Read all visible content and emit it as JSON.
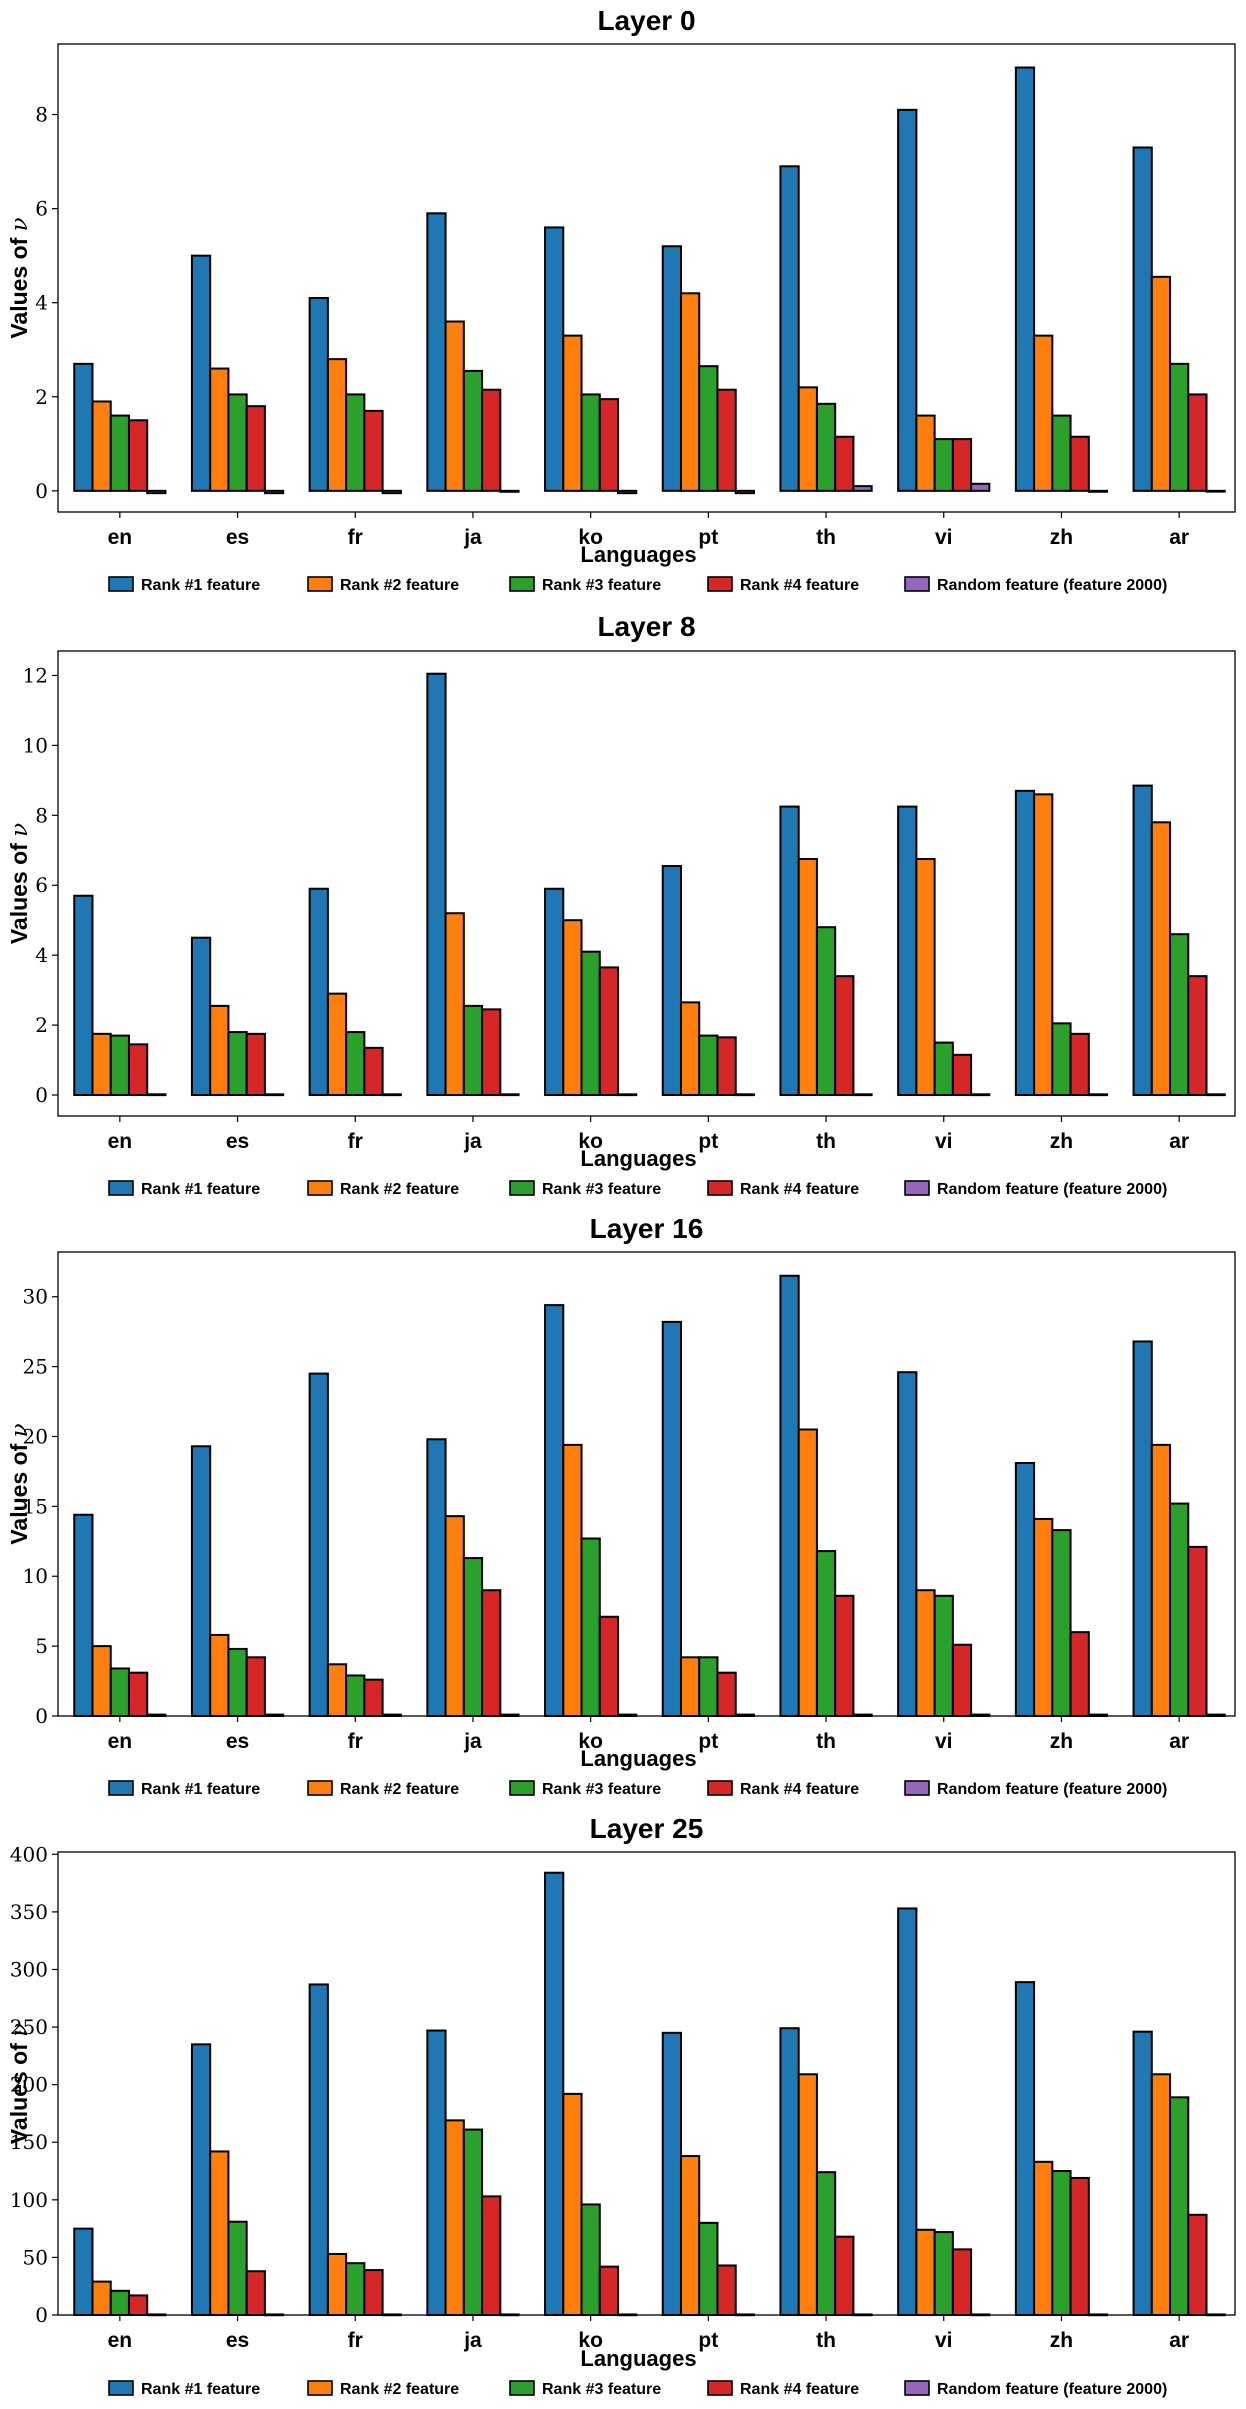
{
  "chart_data": [
    {
      "type": "bar",
      "title": "Layer 0",
      "xlabel": "Languages",
      "ylabel": "Values of",
      "ylabel_symbol": "ν",
      "categories": [
        "en",
        "es",
        "fr",
        "ja",
        "ko",
        "pt",
        "th",
        "vi",
        "zh",
        "ar"
      ],
      "ylim": [
        -0.45,
        9.5
      ],
      "yticks": [
        0,
        2,
        4,
        6,
        8
      ],
      "series": [
        {
          "name": "Rank #1 feature",
          "values": [
            2.7,
            5.0,
            4.1,
            5.9,
            5.6,
            5.2,
            6.9,
            8.1,
            9.0,
            7.3
          ]
        },
        {
          "name": "Rank #2 feature",
          "values": [
            1.9,
            2.6,
            2.8,
            3.6,
            3.3,
            4.2,
            2.2,
            1.6,
            3.3,
            4.55
          ]
        },
        {
          "name": "Rank #3 feature",
          "values": [
            1.6,
            2.05,
            2.05,
            2.55,
            2.05,
            2.65,
            1.85,
            1.1,
            1.6,
            2.7
          ]
        },
        {
          "name": "Rank #4 feature",
          "values": [
            1.5,
            1.8,
            1.7,
            2.15,
            1.95,
            2.15,
            1.15,
            1.1,
            1.15,
            2.05
          ]
        },
        {
          "name": "Random feature (feature 2000)",
          "values": [
            -0.05,
            -0.05,
            -0.05,
            -0.02,
            -0.05,
            -0.05,
            0.1,
            0.15,
            -0.02,
            0.0
          ]
        }
      ]
    },
    {
      "type": "bar",
      "title": "Layer 8",
      "xlabel": "Languages",
      "ylabel": "Values of",
      "ylabel_symbol": "ν",
      "categories": [
        "en",
        "es",
        "fr",
        "ja",
        "ko",
        "pt",
        "th",
        "vi",
        "zh",
        "ar"
      ],
      "ylim": [
        -0.6,
        12.7
      ],
      "yticks": [
        0,
        2,
        4,
        6,
        8,
        10,
        12
      ],
      "series": [
        {
          "name": "Rank #1 feature",
          "values": [
            5.7,
            4.5,
            5.9,
            12.05,
            5.9,
            6.55,
            8.25,
            8.25,
            8.7,
            8.85
          ]
        },
        {
          "name": "Rank #2 feature",
          "values": [
            1.75,
            2.55,
            2.9,
            5.2,
            5.0,
            2.65,
            6.75,
            6.75,
            8.6,
            7.8
          ]
        },
        {
          "name": "Rank #3 feature",
          "values": [
            1.7,
            1.8,
            1.8,
            2.55,
            4.1,
            1.7,
            4.8,
            1.5,
            2.05,
            4.6
          ]
        },
        {
          "name": "Rank #4 feature",
          "values": [
            1.45,
            1.75,
            1.35,
            2.45,
            3.65,
            1.65,
            3.4,
            1.15,
            1.75,
            3.4
          ]
        },
        {
          "name": "Random feature (feature 2000)",
          "values": [
            0.02,
            0.02,
            0.02,
            0.02,
            0.02,
            0.02,
            0.02,
            0.02,
            0.02,
            0.02
          ]
        }
      ]
    },
    {
      "type": "bar",
      "title": "Layer 16",
      "xlabel": "Languages",
      "ylabel": "Values of",
      "ylabel_symbol": "ν",
      "categories": [
        "en",
        "es",
        "fr",
        "ja",
        "ko",
        "pt",
        "th",
        "vi",
        "zh",
        "ar"
      ],
      "ylim": [
        0,
        33.2
      ],
      "yticks": [
        0,
        5,
        10,
        15,
        20,
        25,
        30
      ],
      "series": [
        {
          "name": "Rank #1 feature",
          "values": [
            14.4,
            19.3,
            24.5,
            19.8,
            29.4,
            28.2,
            31.5,
            24.6,
            18.1,
            26.8
          ]
        },
        {
          "name": "Rank #2 feature",
          "values": [
            5.0,
            5.8,
            3.7,
            14.3,
            19.4,
            4.2,
            20.5,
            9.0,
            14.1,
            19.4
          ]
        },
        {
          "name": "Rank #3 feature",
          "values": [
            3.4,
            4.8,
            2.9,
            11.3,
            12.7,
            4.2,
            11.8,
            8.6,
            13.3,
            15.2
          ]
        },
        {
          "name": "Rank #4 feature",
          "values": [
            3.1,
            4.2,
            2.6,
            9.0,
            7.1,
            3.1,
            8.6,
            5.1,
            6.0,
            12.1
          ]
        },
        {
          "name": "Random feature (feature 2000)",
          "values": [
            0.1,
            0.1,
            0.1,
            0.1,
            0.1,
            0.1,
            0.1,
            0.1,
            0.1,
            0.1
          ]
        }
      ]
    },
    {
      "type": "bar",
      "title": "Layer 25",
      "xlabel": "Languages",
      "ylabel": "Values of",
      "ylabel_symbol": "ν",
      "categories": [
        "en",
        "es",
        "fr",
        "ja",
        "ko",
        "pt",
        "th",
        "vi",
        "zh",
        "ar"
      ],
      "ylim": [
        0,
        402
      ],
      "yticks": [
        0,
        50,
        100,
        150,
        200,
        250,
        300,
        350,
        400
      ],
      "series": [
        {
          "name": "Rank #1 feature",
          "values": [
            75,
            235,
            287,
            247,
            384,
            245,
            249,
            353,
            289,
            246
          ]
        },
        {
          "name": "Rank #2 feature",
          "values": [
            29,
            142,
            53,
            169,
            192,
            138,
            209,
            74,
            133,
            209
          ]
        },
        {
          "name": "Rank #3 feature",
          "values": [
            21,
            81,
            45,
            161,
            96,
            80,
            124,
            72,
            125,
            189
          ]
        },
        {
          "name": "Rank #4 feature",
          "values": [
            17,
            38,
            39,
            103,
            42,
            43,
            68,
            57,
            119,
            87
          ]
        },
        {
          "name": "Random feature (feature 2000)",
          "values": [
            0.5,
            0.5,
            0.5,
            0.5,
            0.5,
            0.5,
            0.5,
            0.5,
            0.5,
            0.5
          ]
        }
      ]
    }
  ],
  "colors": {
    "series": [
      "#1f77b4",
      "#ff7f0e",
      "#2ca02c",
      "#d62728",
      "#9467bd"
    ],
    "edge": "#000000"
  }
}
